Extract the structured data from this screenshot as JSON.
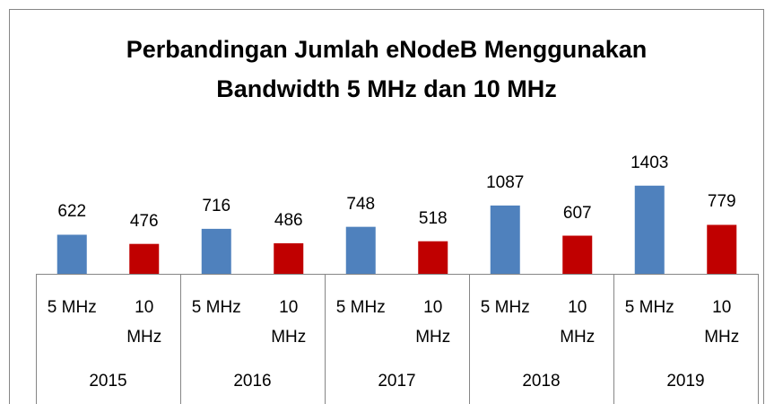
{
  "chart_data": {
    "type": "bar",
    "title": "Perbandingan Jumlah eNodeB Menggunakan Bandwidth 5 MHz dan 10 MHz",
    "categories": [
      "2015",
      "2016",
      "2017",
      "2018",
      "2019"
    ],
    "series": [
      {
        "name": "5 MHz",
        "color": "#4f81bd",
        "values": [
          622,
          716,
          748,
          1087,
          1403
        ]
      },
      {
        "name": "10 MHz",
        "color": "#c00000",
        "values": [
          476,
          486,
          518,
          607,
          779
        ]
      }
    ],
    "ylim": [
      0,
      3000
    ]
  }
}
